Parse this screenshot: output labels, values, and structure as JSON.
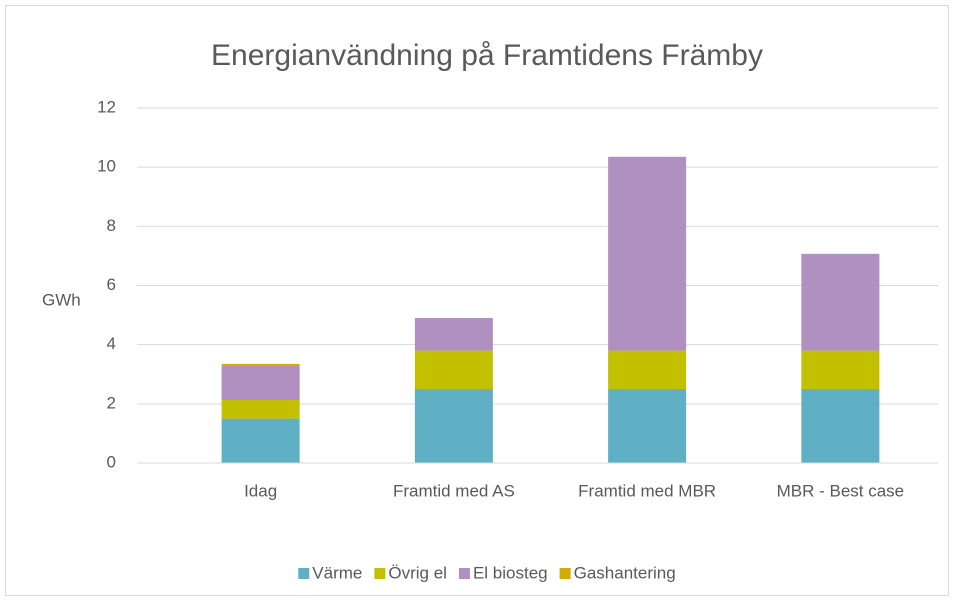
{
  "chart_data": {
    "type": "stacked_bar",
    "title": "Energianvändning på Framtidens Främby",
    "y_label": "GWh",
    "categories": [
      "Idag",
      "Framtid med AS",
      "Framtid med MBR",
      "MBR - Best case"
    ],
    "series": [
      {
        "name": "Värme",
        "color": "#5fafc5",
        "values": [
          1.5,
          2.5,
          2.5,
          2.5
        ]
      },
      {
        "name": "Övrig el",
        "color": "#c3c000",
        "values": [
          0.63,
          1.3,
          1.3,
          1.3
        ]
      },
      {
        "name": "El biosteg",
        "color": "#b08fc1",
        "values": [
          1.15,
          1.1,
          6.55,
          3.27
        ]
      },
      {
        "name": "Gashantering",
        "color": "#d4aa00",
        "values": [
          0.07,
          0,
          0,
          0
        ]
      }
    ],
    "ylim": [
      0,
      12
    ],
    "yticks": [
      0,
      2,
      4,
      6,
      8,
      10,
      12
    ],
    "grid": true,
    "legend": "bottom"
  }
}
